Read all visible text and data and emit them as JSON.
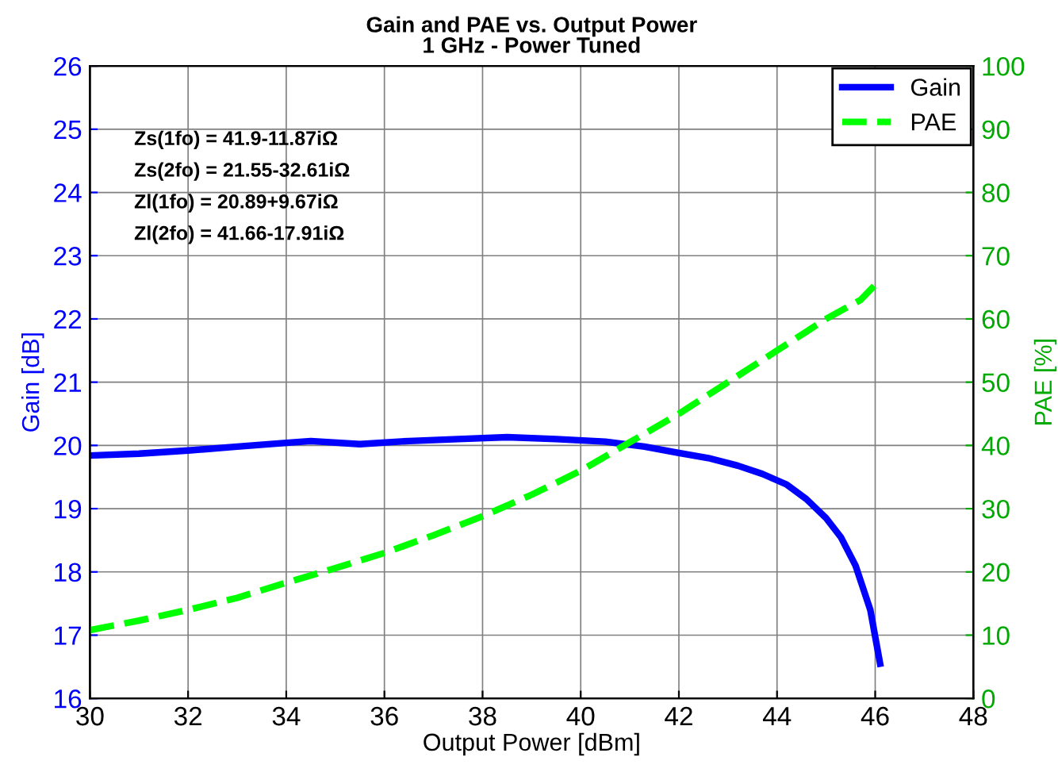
{
  "chart_data": {
    "type": "line",
    "title": "Gain and PAE vs. Output Power\n1 GHz - Power Tuned",
    "xlabel": "Output Power [dBm]",
    "ylabel": "Gain [dB]",
    "y2label": "PAE [%]",
    "annotations": [
      "Zs(1fo) = 41.9-11.87iΩ",
      "Zs(2fo) = 21.55-32.61iΩ",
      "Zl(1fo) = 20.89+9.67iΩ",
      "Zl(2fo) = 41.66-17.91iΩ"
    ],
    "series": [
      {
        "name": "Gain",
        "color": "#0000ff",
        "line_style": "solid",
        "x": [
          30,
          31,
          32,
          33,
          34,
          34.5,
          35.5,
          36.5,
          37.5,
          38.5,
          39.5,
          40.5,
          41.3,
          42,
          42.6,
          43.2,
          43.7,
          44.2,
          44.6,
          45,
          45.3,
          45.6,
          45.9,
          46.1
        ],
        "values": [
          19.84,
          19.87,
          19.92,
          19.98,
          20.04,
          20.07,
          20.02,
          20.07,
          20.1,
          20.13,
          20.1,
          20.06,
          19.98,
          19.88,
          19.8,
          19.68,
          19.55,
          19.38,
          19.15,
          18.85,
          18.55,
          18.1,
          17.4,
          16.55
        ]
      },
      {
        "name": "PAE",
        "color": "#00ff00",
        "line_style": "dashed",
        "axis": "y2",
        "x": [
          30,
          31,
          32,
          33,
          34,
          35,
          36,
          37,
          38,
          39,
          40,
          41,
          42,
          43,
          44,
          45,
          45.7,
          46
        ],
        "values": [
          10.8,
          12.3,
          14,
          15.9,
          18.3,
          20.6,
          23,
          25.8,
          28.8,
          32.2,
          36,
          40.5,
          45,
          50,
          55,
          60,
          63,
          65.4
        ]
      }
    ],
    "xlim": [
      30,
      48
    ],
    "xticks": [
      30,
      32,
      34,
      36,
      38,
      40,
      42,
      44,
      46,
      48
    ],
    "ylim": [
      16,
      26
    ],
    "yticks": [
      16,
      17,
      18,
      19,
      20,
      21,
      22,
      23,
      24,
      25,
      26
    ],
    "y2lim": [
      0,
      100
    ],
    "y2ticks": [
      0,
      10,
      20,
      30,
      40,
      50,
      60,
      70,
      80,
      90,
      100
    ],
    "grid": true,
    "legend": "top right"
  }
}
